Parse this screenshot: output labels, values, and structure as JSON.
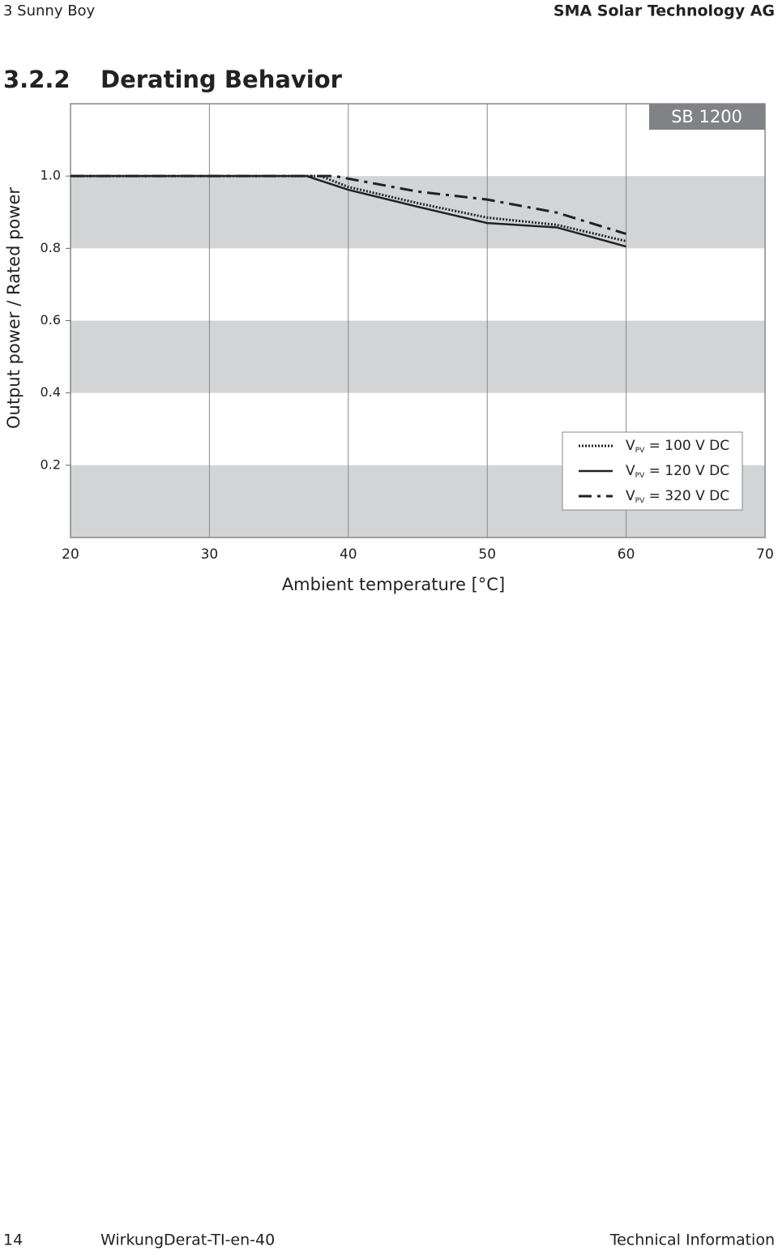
{
  "header": {
    "left": "3 Sunny Boy",
    "right": "SMA Solar Technology AG"
  },
  "section": {
    "number": "3.2.2",
    "title": "Derating Behavior"
  },
  "chart_data": {
    "type": "line",
    "annotation": "SB 1200",
    "x_label": "Ambient temperature [°C]",
    "y_label": "Output power / Rated power",
    "xlim": [
      20,
      70
    ],
    "xticks": [
      20,
      30,
      40,
      50,
      60,
      70
    ],
    "ylim": [
      0,
      1.2
    ],
    "yticks": [
      0.2,
      0.4,
      0.6,
      0.8,
      {
        "value": 1,
        "label": "1.0"
      }
    ],
    "grid": true,
    "shaded_bands": true,
    "legend": "lower right",
    "series": [
      {
        "name": "VPV = 100 V DC",
        "color": "#222222",
        "style": "dotted",
        "x": [
          20,
          38,
          40,
          45,
          50,
          55,
          60
        ],
        "values": [
          1,
          1,
          0.97,
          0.925,
          0.885,
          0.865,
          0.82
        ]
      },
      {
        "name": "VPV = 120 V DC",
        "color": "#222222",
        "style": "solid",
        "x": [
          20,
          37,
          40,
          45,
          50,
          55,
          60
        ],
        "values": [
          1,
          1,
          0.962,
          0.915,
          0.87,
          0.858,
          0.805
        ]
      },
      {
        "name": "VPV = 320 V DC",
        "color": "#222222",
        "style": "dashdot",
        "x": [
          20,
          39,
          45,
          50,
          55,
          60
        ],
        "values": [
          1,
          1,
          0.957,
          0.935,
          0.899,
          0.84
        ]
      }
    ]
  },
  "footer": {
    "page": "14",
    "doc_id": "WirkungDerat-TI-en-40",
    "right": "Technical Information"
  }
}
